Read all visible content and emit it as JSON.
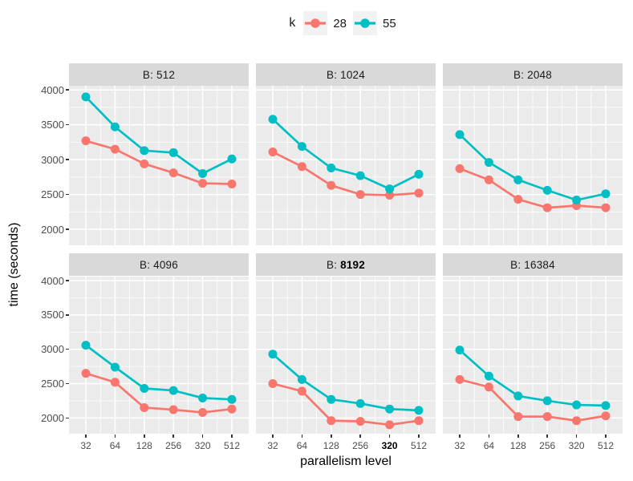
{
  "legend": {
    "title": "k",
    "entries": [
      {
        "label": "28",
        "color": "#F8766D"
      },
      {
        "label": "55",
        "color": "#00BFC4"
      }
    ],
    "key_bg": "#F2F2F2"
  },
  "axes": {
    "y_title": "time (seconds)",
    "x_title": "parallelism level",
    "x_tick_labels": [
      "32",
      "64",
      "128",
      "256",
      "320",
      "512"
    ],
    "y_tick_labels": [
      "4000",
      "3500",
      "3000",
      "2500",
      "2000"
    ],
    "highlight": {
      "panel_index": 4,
      "x_tick_index": 4
    }
  },
  "colors": {
    "strip_bg": "#D9D9D9",
    "panel_bg": "#EBEBEB",
    "grid": "#FFFFFF",
    "axis_text": "#4D4D4D",
    "tick_mark": "#333333"
  },
  "chart_data": {
    "type": "line",
    "facet_variable": "B",
    "x": [
      32,
      64,
      128,
      256,
      320,
      512
    ],
    "xlabel": "parallelism level",
    "ylabel": "time (seconds)",
    "ylim": [
      1770,
      4060
    ],
    "y_major_ticks": [
      2000,
      2500,
      3000,
      3500,
      4000
    ],
    "y_minor_ticks": [
      2250,
      2750,
      3250,
      3750
    ],
    "grid": true,
    "legend_title": "k",
    "legend_position": "top",
    "panels": [
      {
        "facet_prefix": "B:",
        "facet_value": "512",
        "bold": false,
        "series": [
          {
            "name": "28",
            "color": "#F8766D",
            "values": [
              3270,
              3150,
              2940,
              2810,
              2660,
              2650
            ]
          },
          {
            "name": "55",
            "color": "#00BFC4",
            "values": [
              3900,
              3470,
              3130,
              3100,
              2800,
              3010
            ]
          }
        ]
      },
      {
        "facet_prefix": "B:",
        "facet_value": "1024",
        "bold": false,
        "series": [
          {
            "name": "28",
            "color": "#F8766D",
            "values": [
              3110,
              2900,
              2630,
              2500,
              2490,
              2520
            ]
          },
          {
            "name": "55",
            "color": "#00BFC4",
            "values": [
              3580,
              3190,
              2880,
              2770,
              2580,
              2790
            ]
          }
        ]
      },
      {
        "facet_prefix": "B:",
        "facet_value": "2048",
        "bold": false,
        "series": [
          {
            "name": "28",
            "color": "#F8766D",
            "values": [
              2870,
              2710,
              2430,
              2310,
              2340,
              2310
            ]
          },
          {
            "name": "55",
            "color": "#00BFC4",
            "values": [
              3360,
              2960,
              2710,
              2560,
              2420,
              2510
            ]
          }
        ]
      },
      {
        "facet_prefix": "B:",
        "facet_value": "4096",
        "bold": false,
        "series": [
          {
            "name": "28",
            "color": "#F8766D",
            "values": [
              2650,
              2520,
              2150,
              2120,
              2080,
              2130
            ]
          },
          {
            "name": "55",
            "color": "#00BFC4",
            "values": [
              3060,
              2740,
              2430,
              2400,
              2290,
              2270
            ]
          }
        ]
      },
      {
        "facet_prefix": "B:",
        "facet_value": "8192",
        "bold": true,
        "series": [
          {
            "name": "28",
            "color": "#F8766D",
            "values": [
              2500,
              2390,
              1960,
              1950,
              1900,
              1960
            ]
          },
          {
            "name": "55",
            "color": "#00BFC4",
            "values": [
              2930,
              2560,
              2270,
              2210,
              2130,
              2110
            ]
          }
        ]
      },
      {
        "facet_prefix": "B:",
        "facet_value": "16384",
        "bold": false,
        "series": [
          {
            "name": "28",
            "color": "#F8766D",
            "values": [
              2560,
              2450,
              2020,
              2020,
              1960,
              2030
            ]
          },
          {
            "name": "55",
            "color": "#00BFC4",
            "values": [
              2990,
              2610,
              2320,
              2250,
              2190,
              2180
            ]
          }
        ]
      }
    ]
  }
}
